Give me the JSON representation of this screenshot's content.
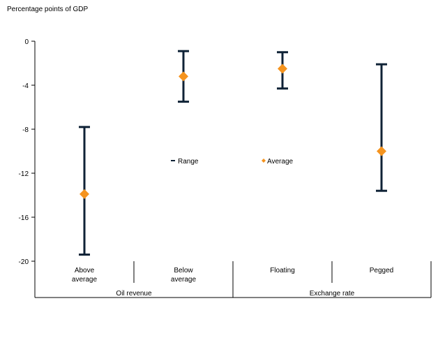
{
  "chart_data": {
    "type": "range",
    "ylabel": "Percentage points of GDP",
    "ylim": [
      -20,
      0
    ],
    "yticks": [
      0,
      -4,
      -8,
      -12,
      -16,
      -20
    ],
    "ytick_labels": [
      "0",
      "-4",
      "-8",
      "-12",
      "-16",
      "-20"
    ],
    "categories": [
      {
        "label_line1": "Above",
        "label_line2": "average",
        "group": "Oil revenue",
        "min": -19.4,
        "max": -7.8,
        "average": -13.9
      },
      {
        "label_line1": "Below",
        "label_line2": "average",
        "group": "Oil revenue",
        "min": -5.5,
        "max": -0.9,
        "average": -3.2
      },
      {
        "label_line1": "Floating",
        "label_line2": "",
        "group": "Exchange rate",
        "min": -4.3,
        "max": -1.0,
        "average": -2.5
      },
      {
        "label_line1": "Pegged",
        "label_line2": "",
        "group": "Exchange rate",
        "min": -13.6,
        "max": -2.1,
        "average": -10.0
      }
    ],
    "groups": [
      "Oil revenue",
      "Exchange rate"
    ],
    "legend": {
      "range_label": "Range",
      "average_label": "Average"
    },
    "colors": {
      "range": "#0f2236",
      "average": "#f5941f",
      "axis": "#000000"
    },
    "grid": false
  }
}
